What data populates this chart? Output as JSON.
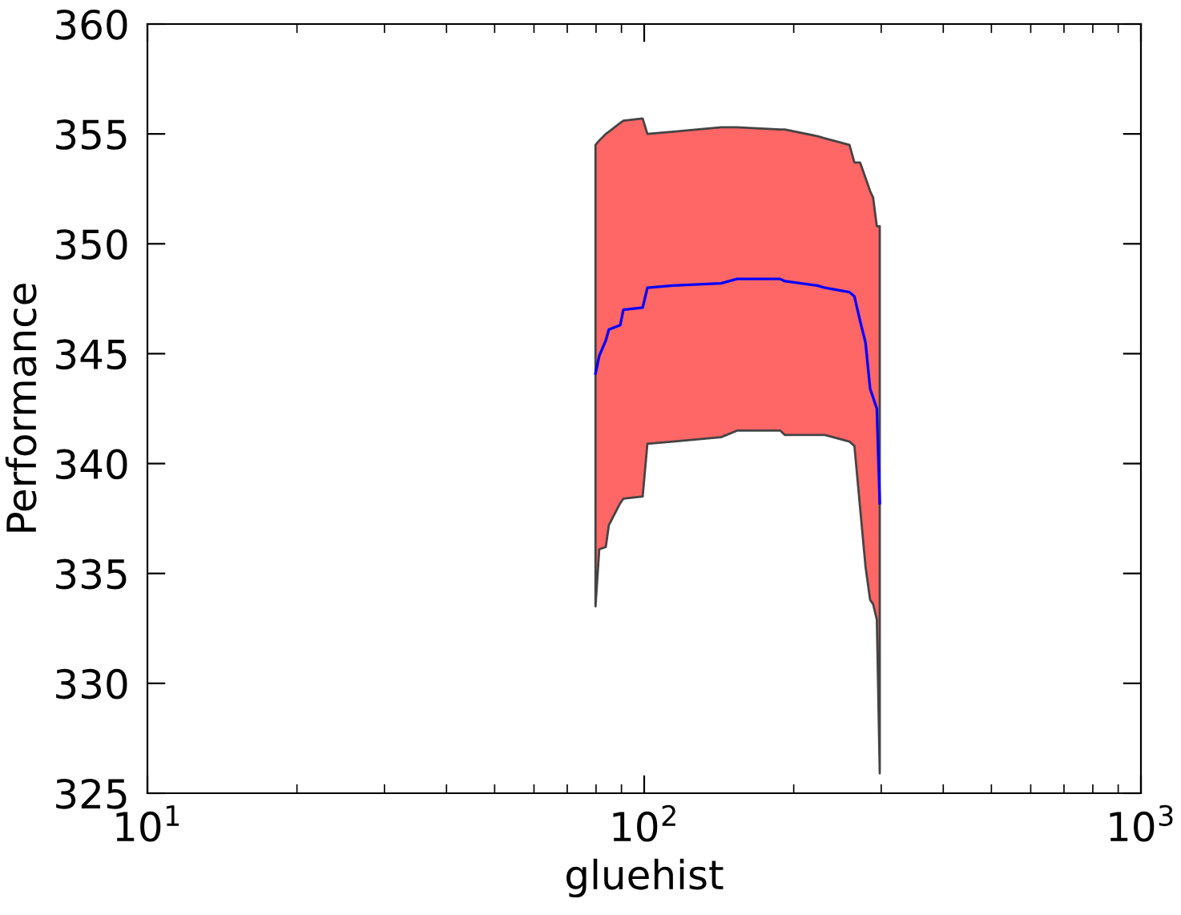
{
  "chart_data": {
    "type": "line",
    "xlabel": "gluehist",
    "ylabel": "Performance",
    "log": "x",
    "xlim": [
      10,
      1000
    ],
    "xticks": [
      {
        "value": 10,
        "label": "10$^{1}$"
      },
      {
        "value": 100,
        "label": "10$^{2}$"
      },
      {
        "value": 1000,
        "label": "10$^{3}$"
      }
    ],
    "ylim": [
      325,
      360
    ],
    "yticks": [
      325,
      330,
      335,
      340,
      345,
      350,
      355,
      360
    ],
    "series": [
      {
        "color": "#0000ff",
        "x": [
          79.8,
          81.2,
          83.7,
          84.9,
          89.5,
          90.8,
          99.3,
          101.5,
          114.3,
          142.8,
          153.8,
          188,
          192,
          223,
          231,
          259,
          265,
          272,
          279,
          285,
          289,
          294,
          298
        ],
        "values": [
          344.1,
          344.9,
          345.6,
          346.1,
          346.3,
          347.0,
          347.1,
          348.0,
          348.1,
          348.2,
          348.4,
          348.4,
          348.3,
          348.1,
          348.0,
          347.8,
          347.6,
          346.5,
          345.5,
          343.4,
          343.0,
          342.5,
          338.2
        ],
        "upper": [
          354.5,
          354.7,
          355.0,
          355.1,
          355.5,
          355.6,
          355.7,
          355.0,
          355.1,
          355.3,
          355.3,
          355.2,
          355.2,
          354.9,
          354.8,
          354.5,
          353.7,
          353.7,
          353.0,
          352.4,
          352.1,
          350.8,
          350.8
        ],
        "lower": [
          333.5,
          336.1,
          336.2,
          337.2,
          338.2,
          338.4,
          338.5,
          340.9,
          341.0,
          341.2,
          341.5,
          341.5,
          341.3,
          341.3,
          341.3,
          341.0,
          340.8,
          338.0,
          335.3,
          333.8,
          333.6,
          332.9,
          325.9
        ]
      }
    ]
  }
}
